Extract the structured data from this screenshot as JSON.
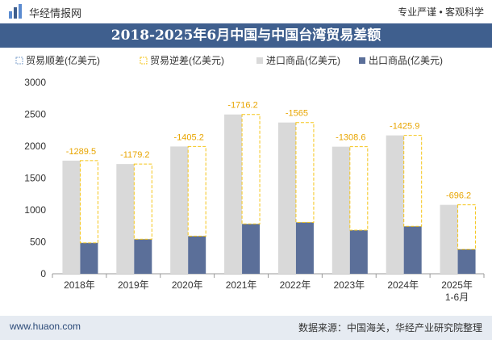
{
  "header": {
    "brand": "华经情报网",
    "tagline": "专业严谨 • 客观科学"
  },
  "title": "2018-2025年6月中国与中国台湾贸易差额",
  "footer": {
    "website": "www.huaon.com",
    "source": "数据来源：中国海关，华经产业研究院整理"
  },
  "colors": {
    "header_bar": "#3f5f8e",
    "import_bar": "#d9d9d9",
    "export_bar": "#5b6f99",
    "deficit_line": "#f5c518",
    "label_text": "#e8a500"
  },
  "chart_data": {
    "type": "bar",
    "categories": [
      "2018年",
      "2019年",
      "2020年",
      "2021年",
      "2022年",
      "2023年",
      "2024年",
      "2025年\n1-6月"
    ],
    "series": [
      {
        "name": "贸易顺差(亿美元)",
        "values": [
          null,
          null,
          null,
          null,
          null,
          null,
          null,
          null
        ]
      },
      {
        "name": "贸易逆差(亿美元)",
        "values": [
          -1289.5,
          -1179.2,
          -1405.2,
          -1716.2,
          -1565,
          -1308.6,
          -1425.9,
          -696.2
        ]
      },
      {
        "name": "进口商品(亿美元)",
        "values": [
          1773,
          1720,
          1995,
          2497,
          2371,
          1992,
          2169,
          1080
        ]
      },
      {
        "name": "出口商品(亿美元)",
        "values": [
          484,
          541,
          590,
          781,
          806,
          683,
          743,
          384
        ]
      }
    ],
    "deficit_labels": [
      "-1289.5",
      "-1179.2",
      "-1405.2",
      "-1716.2",
      "-1565",
      "-1308.6",
      "-1425.9",
      "-696.2"
    ],
    "ylim": [
      0,
      3000
    ],
    "yticks": [
      0,
      500,
      1000,
      1500,
      2000,
      2500,
      3000
    ],
    "legend_position": "top"
  }
}
